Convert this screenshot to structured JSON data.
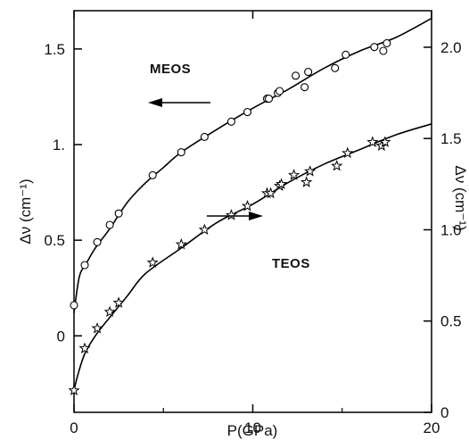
{
  "chart_data": {
    "type": "scatter",
    "xlabel": "P(GPa)",
    "ylabel_left": "Δν (cm⁻¹)",
    "ylabel_right": "Δν (cm⁻¹)",
    "xlim": [
      0,
      20
    ],
    "ylim_left": [
      -0.4,
      1.7
    ],
    "ylim_right": [
      0,
      2.2
    ],
    "x_ticks": [
      {
        "value": 0,
        "label": "0"
      },
      {
        "value": 10,
        "label": "10"
      },
      {
        "value": 20,
        "label": "20"
      }
    ],
    "y_ticks_left": [
      {
        "value": 0,
        "label": "0"
      },
      {
        "value": 0.5,
        "label": "0.5"
      },
      {
        "value": 1.0,
        "label": "1."
      },
      {
        "value": 1.5,
        "label": "1.5"
      }
    ],
    "y_ticks_right": [
      {
        "value": 0,
        "label": "0"
      },
      {
        "value": 0.5,
        "label": "0.5"
      },
      {
        "value": 1.0,
        "label": "1.0"
      },
      {
        "value": 1.5,
        "label": "1.5"
      },
      {
        "value": 2.0,
        "label": "2.0"
      }
    ],
    "grid": false,
    "series": [
      {
        "name": "MEOS",
        "axis": "left",
        "marker": "circle",
        "arrow_direction": "left",
        "points": [
          [
            0.0,
            0.16
          ],
          [
            0.6,
            0.37
          ],
          [
            1.3,
            0.49
          ],
          [
            2.0,
            0.58
          ],
          [
            2.5,
            0.64
          ],
          [
            4.4,
            0.84
          ],
          [
            6.0,
            0.96
          ],
          [
            7.3,
            1.04
          ],
          [
            8.8,
            1.12
          ],
          [
            9.7,
            1.17
          ],
          [
            10.8,
            1.24
          ],
          [
            10.9,
            1.24
          ],
          [
            11.4,
            1.27
          ],
          [
            11.5,
            1.28
          ],
          [
            12.4,
            1.36
          ],
          [
            12.9,
            1.3
          ],
          [
            13.1,
            1.38
          ],
          [
            14.6,
            1.4
          ],
          [
            15.2,
            1.47
          ],
          [
            16.8,
            1.51
          ],
          [
            17.3,
            1.49
          ],
          [
            17.5,
            1.53
          ]
        ],
        "fit": [
          [
            0.0,
            0.12
          ],
          [
            0.3,
            0.31
          ],
          [
            0.7,
            0.38
          ],
          [
            1.2,
            0.46
          ],
          [
            2.0,
            0.56
          ],
          [
            3.0,
            0.7
          ],
          [
            4.0,
            0.8
          ],
          [
            5.0,
            0.88
          ],
          [
            6.0,
            0.96
          ],
          [
            8.0,
            1.08
          ],
          [
            10.0,
            1.19
          ],
          [
            12.0,
            1.29
          ],
          [
            14.0,
            1.4
          ],
          [
            16.0,
            1.49
          ],
          [
            18.0,
            1.56
          ],
          [
            20.0,
            1.66
          ]
        ]
      },
      {
        "name": "TEOS",
        "axis": "right",
        "marker": "star",
        "arrow_direction": "right",
        "points": [
          [
            0.0,
            0.12
          ],
          [
            0.6,
            0.35
          ],
          [
            1.3,
            0.46
          ],
          [
            2.0,
            0.55
          ],
          [
            2.5,
            0.6
          ],
          [
            4.4,
            0.82
          ],
          [
            6.0,
            0.92
          ],
          [
            7.3,
            1.0
          ],
          [
            8.8,
            1.08
          ],
          [
            9.7,
            1.13
          ],
          [
            10.8,
            1.2
          ],
          [
            11.0,
            1.2
          ],
          [
            11.5,
            1.24
          ],
          [
            11.6,
            1.25
          ],
          [
            12.3,
            1.3
          ],
          [
            13.0,
            1.26
          ],
          [
            13.2,
            1.32
          ],
          [
            14.7,
            1.35
          ],
          [
            15.3,
            1.42
          ],
          [
            16.7,
            1.48
          ],
          [
            17.2,
            1.46
          ],
          [
            17.4,
            1.48
          ]
        ],
        "fit": [
          [
            0.0,
            0.12
          ],
          [
            0.2,
            0.2
          ],
          [
            0.6,
            0.32
          ],
          [
            1.2,
            0.42
          ],
          [
            2.0,
            0.52
          ],
          [
            3.0,
            0.64
          ],
          [
            4.0,
            0.76
          ],
          [
            6.0,
            0.9
          ],
          [
            8.0,
            1.04
          ],
          [
            10.0,
            1.14
          ],
          [
            12.0,
            1.26
          ],
          [
            14.0,
            1.36
          ],
          [
            16.0,
            1.44
          ],
          [
            18.0,
            1.52
          ],
          [
            20.0,
            1.58
          ]
        ]
      }
    ]
  }
}
